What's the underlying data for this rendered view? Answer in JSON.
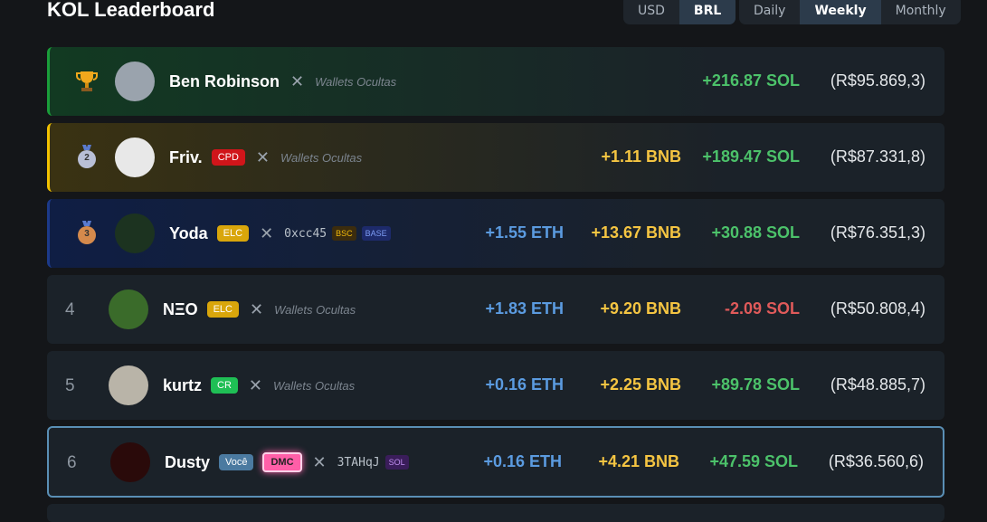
{
  "header": {
    "title": "KOL Leaderboard",
    "currency": [
      "USD",
      "BRL"
    ],
    "active_currency": 1,
    "periods": [
      "Daily",
      "Weekly",
      "Monthly"
    ],
    "active_period": 1
  },
  "rows": [
    {
      "name": "Ben Robinson",
      "badges": [],
      "wallet": "Wallets Ocultas",
      "chains": [],
      "sol": "+216.87 SOL",
      "fiat": "(R$95.869,3)",
      "avatar": "#9aa3ad"
    },
    {
      "medal": "2",
      "name": "Friv.",
      "badges": [
        {
          "text": "CPD",
          "color": "#d0151a"
        }
      ],
      "wallet": "Wallets Ocultas",
      "chains": [],
      "bnb": "+1.11 BNB",
      "sol": "+189.47 SOL",
      "fiat": "(R$87.331,8)",
      "avatar": "#e8e8e8"
    },
    {
      "medal": "3",
      "name": "Yoda",
      "badges": [
        {
          "text": "ELC",
          "color": "#d9a60b"
        }
      ],
      "wallet": "0xcc45",
      "chains": [
        {
          "text": "BSC",
          "color": "#f0b90b",
          "bg": "#3b2c0e"
        },
        {
          "text": "BASE",
          "color": "#7d9cf5",
          "bg": "#1d2a6a"
        }
      ],
      "eth": "+1.55 ETH",
      "bnb": "+13.67 BNB",
      "sol": "+30.88 SOL",
      "fiat": "(R$76.351,3)",
      "avatar": "#1c3320"
    },
    {
      "rank": "4",
      "name": "NΞO",
      "badges": [
        {
          "text": "ELC",
          "color": "#d9a60b"
        }
      ],
      "wallet": "Wallets Ocultas",
      "chains": [],
      "eth": "+1.83 ETH",
      "bnb": "+9.20 BNB",
      "sol": "-2.09 SOL",
      "fiat": "(R$50.808,4)",
      "avatar": "#3a6b2a"
    },
    {
      "rank": "5",
      "name": "kurtz",
      "badges": [
        {
          "text": "CR",
          "color": "#1fbf55"
        }
      ],
      "wallet": "Wallets Ocultas",
      "chains": [],
      "eth": "+0.16 ETH",
      "bnb": "+2.25 BNB",
      "sol": "+89.78 SOL",
      "fiat": "(R$48.885,7)",
      "avatar": "#b9b4a8"
    },
    {
      "rank": "6",
      "you": true,
      "name": "Dusty",
      "badges": [
        {
          "text": "Você",
          "color": "#4b7aa0"
        },
        {
          "text": "DMC",
          "color": "#ff5fa8",
          "glow": true
        }
      ],
      "wallet": "3TAHqJ",
      "chains": [
        {
          "text": "SOL",
          "color": "#c08ff0",
          "bg": "#3a1d5a"
        }
      ],
      "eth": "+0.16 ETH",
      "bnb": "+4.21 BNB",
      "sol": "+47.59 SOL",
      "fiat": "(R$36.560,6)",
      "avatar": "#2a0a0a"
    }
  ]
}
